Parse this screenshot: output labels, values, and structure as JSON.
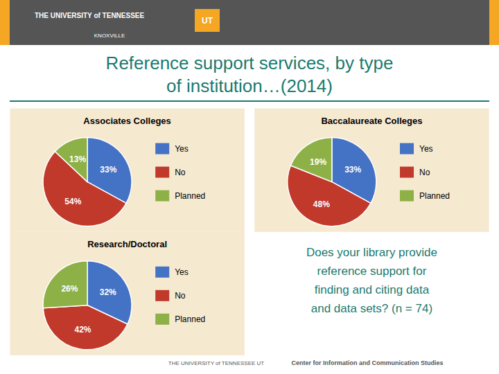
{
  "title": "Reference support services, by type\nof institution…(2014)",
  "annotations": [
    "THE UNIVERSITY of TENNESSEE",
    "UT",
    "KNOXVILLE",
    "Does your library provide\nreference support for\nfinding and citing data\nand data sets? (n = 74)",
    "THE UNIVERSITY of TENNESSEE  UT",
    "Center for Information and Communication Studies"
  ],
  "chart_data": [
    {
      "type": "pie",
      "title": "Associates Colleges",
      "categories": [
        "Yes",
        "No",
        "Planned"
      ],
      "values": [
        33,
        54,
        13
      ],
      "value_labels": [
        "33%",
        "54%",
        "13%"
      ],
      "colors": [
        "#4472c4",
        "#c0392b",
        "#8db147"
      ],
      "data_labels": true,
      "legend": "right"
    },
    {
      "type": "pie",
      "title": "Baccalaureate Colleges",
      "categories": [
        "Yes",
        "No",
        "Planned"
      ],
      "values": [
        33,
        48,
        19
      ],
      "value_labels": [
        "33%",
        "48%",
        "19%"
      ],
      "colors": [
        "#4472c4",
        "#c0392b",
        "#8db147"
      ],
      "data_labels": true,
      "legend": "right"
    },
    {
      "type": "pie",
      "title": "Research/Doctoral",
      "categories": [
        "Yes",
        "No",
        "Planned"
      ],
      "values": [
        32,
        42,
        26
      ],
      "value_labels": [
        "32%",
        "42%",
        "26%"
      ],
      "colors": [
        "#4472c4",
        "#c0392b",
        "#8db147"
      ],
      "data_labels": true,
      "legend": "right"
    }
  ]
}
